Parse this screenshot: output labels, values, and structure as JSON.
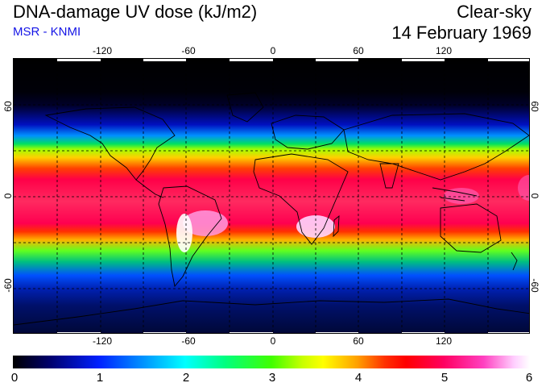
{
  "header": {
    "title": "DNA-damage UV dose (kJ/m2)",
    "credit": "MSR - KNMI",
    "condition": "Clear-sky",
    "date": "14 February 1969"
  },
  "map": {
    "lon_ticks": [
      "-120",
      "-60",
      "0",
      "60",
      "120"
    ],
    "lat_ticks_left": [
      "60",
      "0",
      "-60"
    ],
    "lat_ticks_right": [
      "60",
      "0",
      "-60"
    ],
    "gridlines": "dashed every 30 degrees"
  },
  "colorbar": {
    "labels": [
      "0",
      "1",
      "2",
      "3",
      "4",
      "5",
      "6"
    ]
  },
  "colors": {
    "credit_text": "#1414e6",
    "map_background_min": "#000000",
    "map_background_max": "#ffffff"
  }
}
